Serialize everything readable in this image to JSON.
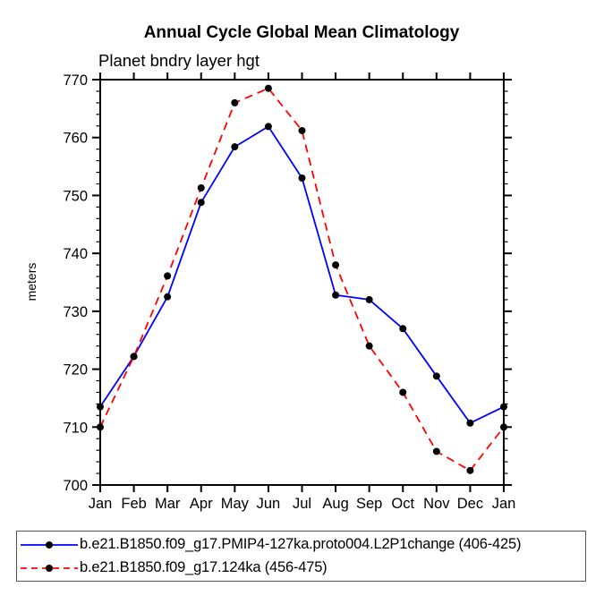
{
  "page": {
    "background": "#ffffff"
  },
  "chart_data": {
    "type": "line",
    "title": "Annual Cycle Global Mean Climatology",
    "subtitle": "Planet bndry layer hgt",
    "ylabel": "meters",
    "xlabel": "",
    "categories": [
      "Jan",
      "Feb",
      "Mar",
      "Apr",
      "May",
      "Jun",
      "Jul",
      "Aug",
      "Sep",
      "Oct",
      "Nov",
      "Dec",
      "Jan"
    ],
    "ylim": [
      700,
      770
    ],
    "ytick_major_step": 10,
    "ytick_minor_step": 2,
    "ytick_labels": [
      "700",
      "710",
      "720",
      "730",
      "740",
      "750",
      "760",
      "770"
    ],
    "grid": false,
    "legend_position": "bottom-left-box",
    "axis_color": "#000000",
    "marker_color": "#000000",
    "series": [
      {
        "name": "b.e21.B1850.f09_g17.PMIP4-127ka.proto004.L2P1change (406-425)",
        "color": "#0000ff",
        "style": "solid",
        "marker": "circle",
        "values": [
          713.5,
          722.2,
          732.5,
          748.8,
          758.4,
          761.9,
          753.0,
          732.8,
          732.0,
          727.0,
          718.8,
          710.7,
          713.5
        ]
      },
      {
        "name": "b.e21.B1850.f09_g17.124ka (456-475)",
        "color": "#ff0000",
        "style": "dashed",
        "marker": "circle",
        "values": [
          710.0,
          722.2,
          736.1,
          751.3,
          766.0,
          768.5,
          761.2,
          738.0,
          724.0,
          716.0,
          705.8,
          702.5,
          710.0
        ]
      }
    ]
  }
}
